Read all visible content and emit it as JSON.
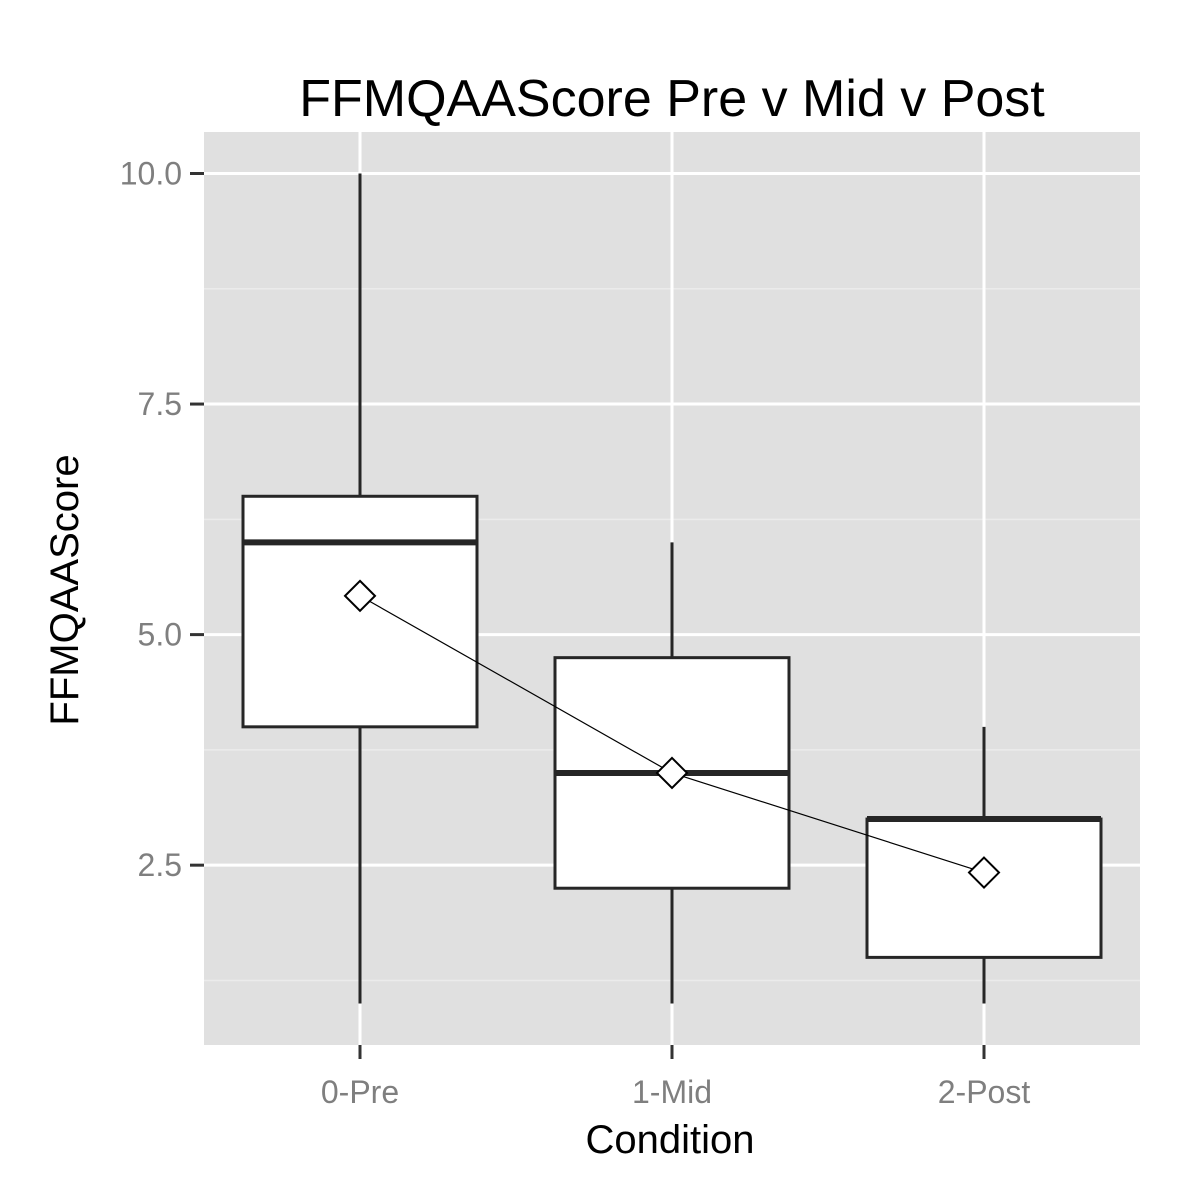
{
  "chart_data": {
    "type": "box",
    "title": "FFMQAAScore Pre v Mid v Post",
    "xlabel": "Condition",
    "ylabel": "FFMQAAScore",
    "categories": [
      "0-Pre",
      "1-Mid",
      "2-Post"
    ],
    "ylim": [
      0.55,
      10.45
    ],
    "y_ticks": [
      2.5,
      5.0,
      7.5,
      10.0
    ],
    "y_tick_labels": [
      "2.5",
      "5.0",
      "7.5",
      "10.0"
    ],
    "y_minor_ticks": [
      1.25,
      3.75,
      6.25,
      8.75
    ],
    "grid": true,
    "boxes": [
      {
        "category": "0-Pre",
        "whisker_low": 1.0,
        "q1": 4.0,
        "median": 6.0,
        "q3": 6.5,
        "whisker_high": 10.0,
        "mean": 5.42
      },
      {
        "category": "1-Mid",
        "whisker_low": 1.0,
        "q1": 2.25,
        "median": 3.5,
        "q3": 4.75,
        "whisker_high": 6.0,
        "mean": 3.5
      },
      {
        "category": "2-Post",
        "whisker_low": 1.0,
        "q1": 1.5,
        "median": 3.0,
        "q3": 3.0,
        "whisker_high": 4.0,
        "mean": 2.42
      }
    ],
    "mean_series": {
      "marker": "diamond",
      "connected": true
    },
    "colors": {
      "panel": "#e0e0e0",
      "grid_major": "#ffffff",
      "grid_minor": "#ebebeb",
      "box_fill": "#ffffff",
      "box_stroke": "#262626",
      "tick_text": "#7f7f7f"
    }
  }
}
